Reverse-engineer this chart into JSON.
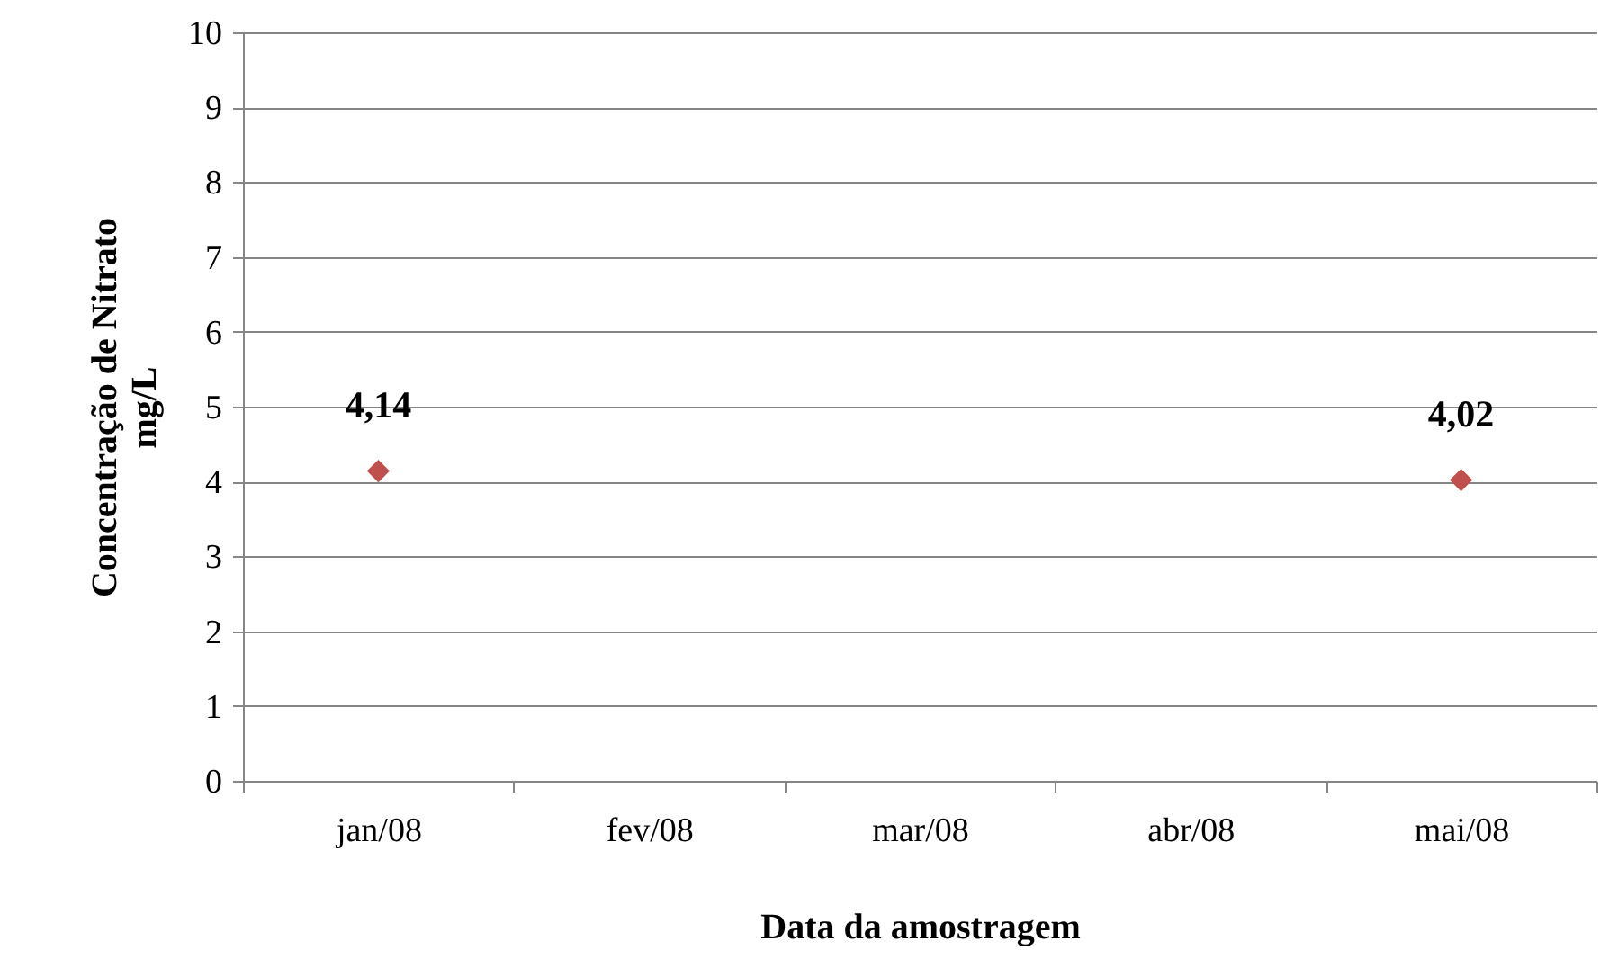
{
  "chart_data": {
    "type": "scatter",
    "xlabel": "Data da amostragem",
    "ylabel": "Concentração de Nitrato\nmg/L",
    "categories": [
      "jan/08",
      "fev/08",
      "mar/08",
      "abr/08",
      "mai/08"
    ],
    "series": [
      {
        "color": "#c0504d",
        "values": [
          4.14,
          null,
          null,
          null,
          4.02
        ],
        "value_labels": [
          "4,14",
          null,
          null,
          null,
          "4,02"
        ]
      }
    ],
    "marker": "diamond",
    "ylim": [
      0,
      10
    ],
    "yticks": [
      0,
      1,
      2,
      3,
      4,
      5,
      6,
      7,
      8,
      9,
      10
    ],
    "grid": "y"
  }
}
